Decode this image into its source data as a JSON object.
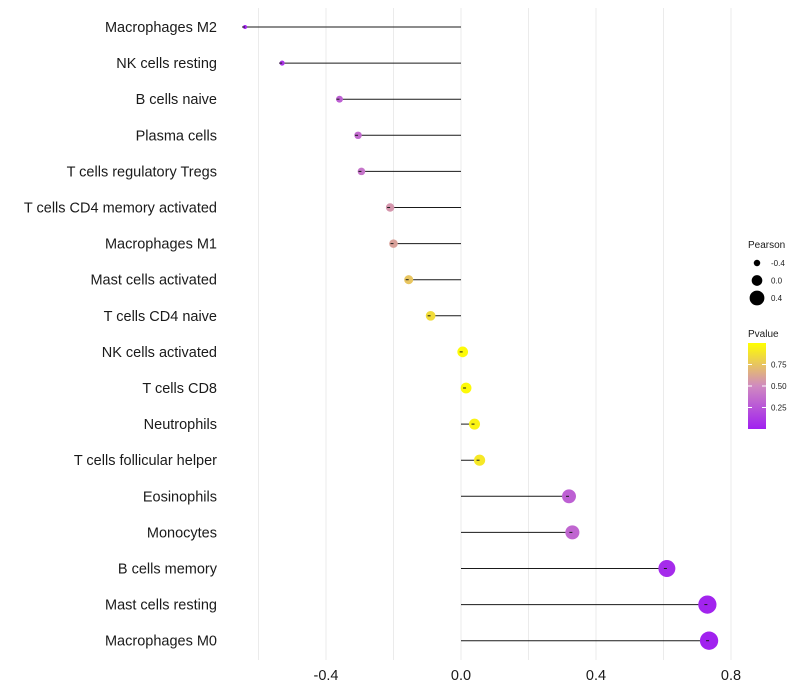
{
  "chart_data": {
    "type": "lollipop",
    "title": "",
    "xlabel": "",
    "ylabel": "",
    "xlim": [
      -0.6,
      0.8
    ],
    "x_ticks": [
      -0.4,
      0.0,
      0.4,
      0.8
    ],
    "x_tick_labels": [
      "-0.4",
      "0.0",
      "0.4",
      "0.8"
    ],
    "grid": true,
    "categories": [
      "Macrophages M2",
      "NK cells resting",
      "B cells naive",
      "Plasma cells",
      "T cells regulatory  Tregs",
      "T cells CD4 memory activated",
      "Macrophages M1",
      "Mast cells activated",
      "T cells CD4 naive",
      "NK cells activated",
      "T cells CD8",
      "Neutrophils",
      "T cells follicular helper",
      "Eosinophils",
      "Monocytes",
      "B cells memory",
      "Mast cells resting",
      "Macrophages M0"
    ],
    "pearson": [
      -0.64,
      -0.53,
      -0.36,
      -0.305,
      -0.295,
      -0.21,
      -0.2,
      -0.155,
      -0.09,
      0.005,
      0.015,
      0.04,
      0.055,
      0.32,
      0.33,
      0.61,
      0.73,
      0.735
    ],
    "pvalue": [
      0.01,
      0.1,
      0.3,
      0.35,
      0.4,
      0.55,
      0.6,
      0.75,
      0.85,
      0.98,
      0.98,
      0.95,
      0.9,
      0.3,
      0.33,
      0.05,
      0.02,
      0.01
    ],
    "legend_size": {
      "title": "Pearson",
      "entries": [
        "-0.4",
        "0.0",
        "0.4"
      ],
      "values": [
        -0.4,
        0.0,
        0.4
      ]
    },
    "legend_color": {
      "title": "Pvalue",
      "ticks": [
        "0.75",
        "0.50",
        "0.25"
      ],
      "tick_values": [
        0.75,
        0.5,
        0.25
      ],
      "low_color": "#a020f0",
      "mid_color": "#d08ac0",
      "high_color": "#ffff00",
      "range": [
        0.0,
        1.0
      ]
    },
    "legend_position": "right"
  }
}
